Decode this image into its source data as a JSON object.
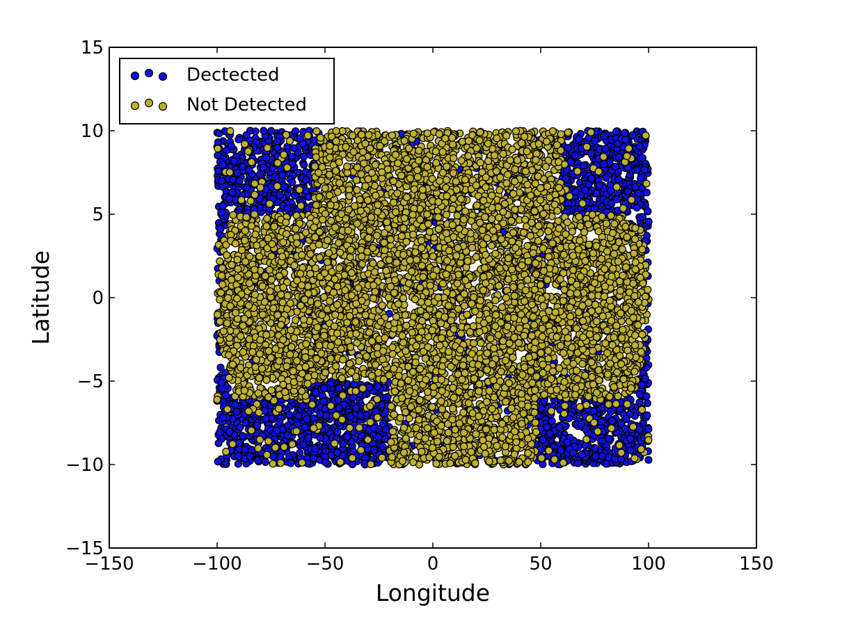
{
  "chart_data": {
    "type": "scatter",
    "title": "",
    "xlabel": "Longitude",
    "ylabel": "Latitude",
    "xlim": [
      -150,
      150
    ],
    "ylim": [
      -15,
      15
    ],
    "xticks": [
      -150,
      -100,
      -50,
      0,
      50,
      100,
      150
    ],
    "yticks": [
      -15,
      -10,
      -5,
      0,
      5,
      10,
      15
    ],
    "xtick_labels": [
      "−150",
      "−100",
      "−50",
      "0",
      "50",
      "100",
      "150"
    ],
    "ytick_labels": [
      "−15",
      "−10",
      "−5",
      "0",
      "5",
      "10",
      "15"
    ],
    "grid": false,
    "legend_position": "top-left",
    "domain": {
      "x": [
        -100,
        100
      ],
      "y": [
        -10,
        10
      ]
    },
    "series": [
      {
        "name": "Dectected",
        "color": "#1010e0",
        "region": "outside an elliptical central band, spread over the full domain; denser toward the corners, especially lower-left and lower-right",
        "approx_points": 5000
      },
      {
        "name": "Not Detected",
        "color": "#c0b030",
        "region": "elliptical central band roughly x from −60 to 60 at the edges of the domain and the full width near y = 0",
        "approx_points": 6000
      }
    ]
  }
}
